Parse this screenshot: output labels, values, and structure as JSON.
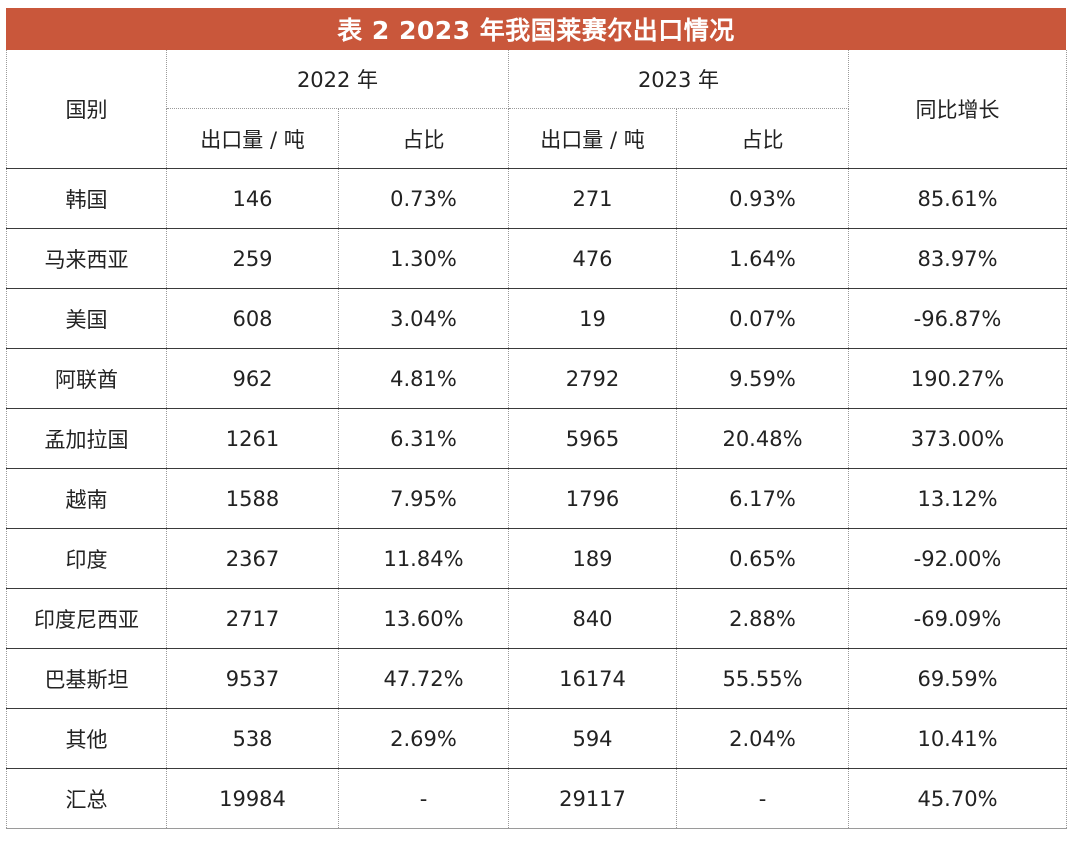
{
  "title": "表 2 2023 年我国莱赛尔出口情况",
  "header": {
    "country": "国别",
    "year_2022": "2022 年",
    "year_2023": "2023 年",
    "export_volume": "出口量 / 吨",
    "share": "占比",
    "yoy_growth": "同比增长"
  },
  "rows": [
    {
      "country": "韩国",
      "v2022": "146",
      "s2022": "0.73%",
      "v2023": "271",
      "s2023": "0.93%",
      "growth": "85.61%"
    },
    {
      "country": "马来西亚",
      "v2022": "259",
      "s2022": "1.30%",
      "v2023": "476",
      "s2023": "1.64%",
      "growth": "83.97%"
    },
    {
      "country": "美国",
      "v2022": "608",
      "s2022": "3.04%",
      "v2023": "19",
      "s2023": "0.07%",
      "growth": "-96.87%"
    },
    {
      "country": "阿联酋",
      "v2022": "962",
      "s2022": "4.81%",
      "v2023": "2792",
      "s2023": "9.59%",
      "growth": "190.27%"
    },
    {
      "country": "孟加拉国",
      "v2022": "1261",
      "s2022": "6.31%",
      "v2023": "5965",
      "s2023": "20.48%",
      "growth": "373.00%"
    },
    {
      "country": "越南",
      "v2022": "1588",
      "s2022": "7.95%",
      "v2023": "1796",
      "s2023": "6.17%",
      "growth": "13.12%"
    },
    {
      "country": "印度",
      "v2022": "2367",
      "s2022": "11.84%",
      "v2023": "189",
      "s2023": "0.65%",
      "growth": "-92.00%"
    },
    {
      "country": "印度尼西亚",
      "v2022": "2717",
      "s2022": "13.60%",
      "v2023": "840",
      "s2023": "2.88%",
      "growth": "-69.09%"
    },
    {
      "country": "巴基斯坦",
      "v2022": "9537",
      "s2022": "47.72%",
      "v2023": "16174",
      "s2023": "55.55%",
      "growth": "69.59%"
    },
    {
      "country": "其他",
      "v2022": "538",
      "s2022": "2.69%",
      "v2023": "594",
      "s2023": "2.04%",
      "growth": "10.41%"
    },
    {
      "country": "汇总",
      "v2022": "19984",
      "s2022": "-",
      "v2023": "29117",
      "s2023": "-",
      "growth": "45.70%"
    }
  ],
  "colors": {
    "title_bar": "#c9573b",
    "title_text": "#ffffff",
    "row_rule": "#3a3a3a",
    "dotted_rule": "#9a9a9a"
  }
}
